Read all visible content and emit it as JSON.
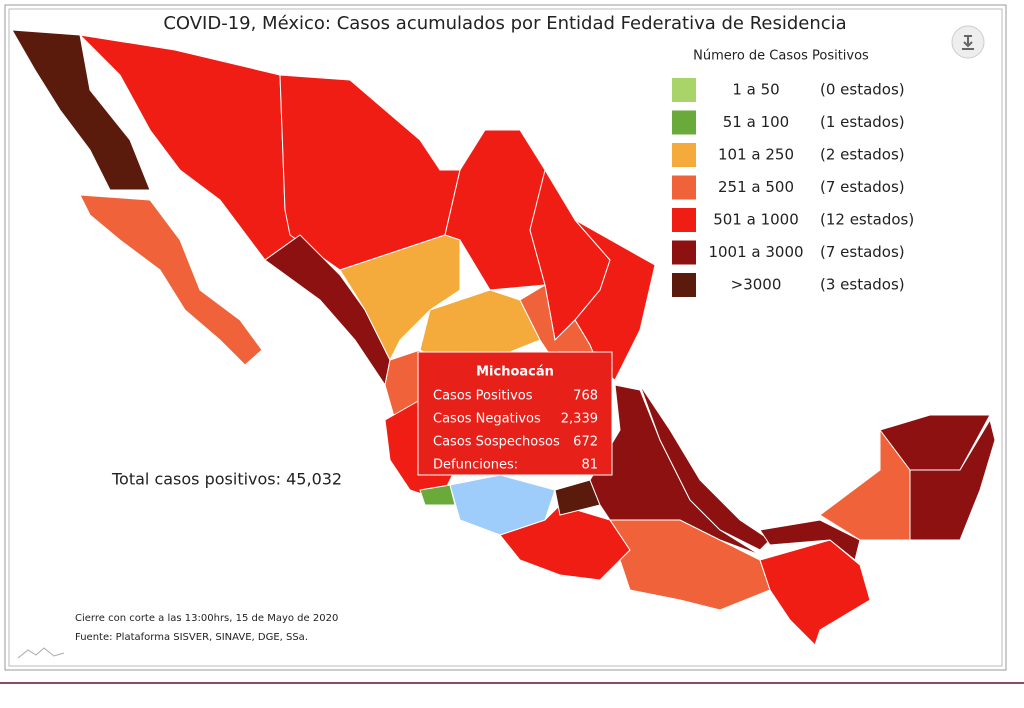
{
  "header": {
    "title": "COVID-19, México: Casos acumulados por Entidad Federativa de Residencia"
  },
  "legend": {
    "title": "Número de Casos Positivos",
    "items": [
      {
        "range": "1 a 50",
        "count": "(0 estados)",
        "color": "#a8d46a"
      },
      {
        "range": "51 a 100",
        "count": "(1 estados)",
        "color": "#6aaa3a"
      },
      {
        "range": "101 a 250",
        "count": "(2 estados)",
        "color": "#f5ab3b"
      },
      {
        "range": "251 a 500",
        "count": "(7 estados)",
        "color": "#f0633a"
      },
      {
        "range": "501 a 1000",
        "count": "(12 estados)",
        "color": "#ef1d14"
      },
      {
        "range": "1001 a 3000",
        "count": "(7 estados)",
        "color": "#8e1111"
      },
      {
        "range": ">3000",
        "count": "(3 estados)",
        "color": "#5a1a0c"
      }
    ]
  },
  "tooltip": {
    "title": "Michoacán",
    "rows": [
      [
        "Casos Positivos",
        "768"
      ],
      [
        "Casos Negativos",
        "2,339"
      ],
      [
        "Casos Sospechosos",
        "672"
      ],
      [
        "Defunciones:",
        "81"
      ]
    ]
  },
  "total": "Total casos positivos: 45,032",
  "notes": [
    "Cierre con corte a las 13:00hrs, 15 de Mayo de 2020",
    "Fuente: Plataforma SISVER, SINAVE, DGE, SSa."
  ]
}
